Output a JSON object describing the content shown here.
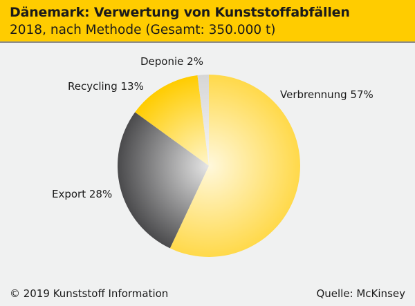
{
  "chart_data": {
    "type": "pie",
    "title": "Dänemark: Verwertung von Kunststoffabfällen",
    "subtitle": "2018, nach Methode (Gesamt: 350.000 t)",
    "categories": [
      "Verbrennung",
      "Export",
      "Recycling",
      "Deponie"
    ],
    "values": [
      57,
      28,
      13,
      2
    ],
    "labels": [
      "Verbrennung 57%",
      "Export 28%",
      "Recycling 13%",
      "Deponie 2%"
    ],
    "colors": {
      "Verbrennung": [
        "#fff8dc",
        "#ffd94a"
      ],
      "Export": [
        "#e6e6e6",
        "#4a4a4c"
      ],
      "Recycling": [
        "#fff6cc",
        "#ffcc00"
      ],
      "Deponie": [
        "#f6f6f6",
        "#d6d6d6"
      ]
    }
  },
  "footer": {
    "copyright": "© 2019 Kunststoff Information",
    "source": "Quelle: McKinsey"
  }
}
